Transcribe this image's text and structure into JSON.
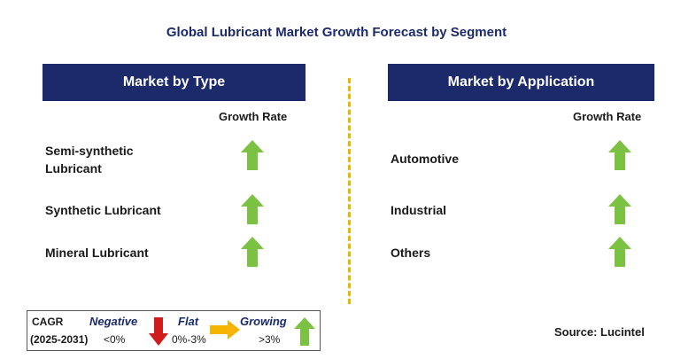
{
  "title": "Global Lubricant Market Growth Forecast by Segment",
  "left_panel": {
    "header": "Market by Type",
    "growth_label": "Growth Rate",
    "rows": [
      {
        "label_line1": "Semi-synthetic",
        "label_line2": "Lubricant",
        "trend": "growing"
      },
      {
        "label_line1": "Synthetic Lubricant",
        "label_line2": "",
        "trend": "growing"
      },
      {
        "label_line1": "Mineral Lubricant",
        "label_line2": "",
        "trend": "growing"
      }
    ]
  },
  "right_panel": {
    "header": "Market by Application",
    "growth_label": "Growth Rate",
    "rows": [
      {
        "label": "Automotive",
        "trend": "growing"
      },
      {
        "label": "Industrial",
        "trend": "growing"
      },
      {
        "label": "Others",
        "trend": "growing"
      }
    ]
  },
  "legend": {
    "cagr_label": "CAGR",
    "period": "(2025-2031)",
    "negative_label": "Negative",
    "negative_range": "<0%",
    "flat_label": "Flat",
    "flat_range": "0%-3%",
    "growing_label": "Growing",
    "growing_range": ">3%"
  },
  "source": "Source: Lucintel",
  "colors": {
    "header_bg": "#1c2a6b",
    "growing_arrow": "#7cc242",
    "negative_arrow": "#d01c1c",
    "flat_arrow": "#f5b400",
    "divider": "#f0b400"
  }
}
